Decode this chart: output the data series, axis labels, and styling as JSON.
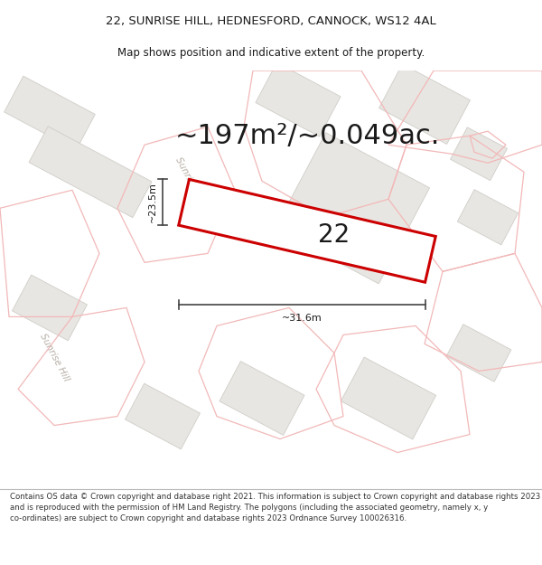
{
  "title_line1": "22, SUNRISE HILL, HEDNESFORD, CANNOCK, WS12 4AL",
  "title_line2": "Map shows position and indicative extent of the property.",
  "area_text": "~197m²/~0.049ac.",
  "label_22": "22",
  "dim_width": "~31.6m",
  "dim_height": "~23.5m",
  "footer_text": "Contains OS data © Crown copyright and database right 2021. This information is subject to Crown copyright and database rights 2023 and is reproduced with the permission of HM Land Registry. The polygons (including the associated geometry, namely x, y co-ordinates) are subject to Crown copyright and database rights 2023 Ordnance Survey 100026316.",
  "map_bg": "#f7f6f4",
  "road_color": "#ffffff",
  "building_color": "#e8e6e2",
  "building_edge": "#d0cdc8",
  "parcel_color": "#f2b8b8",
  "highlight_color": "#cc0000",
  "highlight_fill": "#ffffff",
  "street_label_color": "#b8b0a8",
  "dim_line_color": "#444444",
  "text_color": "#1a1a1a",
  "footer_color": "#333333",
  "title_fontsize": 9.5,
  "subtitle_fontsize": 8.5,
  "area_fontsize": 22,
  "label_fontsize": 20,
  "dim_fontsize": 8,
  "footer_fontsize": 6.2,
  "street_fontsize": 7.5
}
